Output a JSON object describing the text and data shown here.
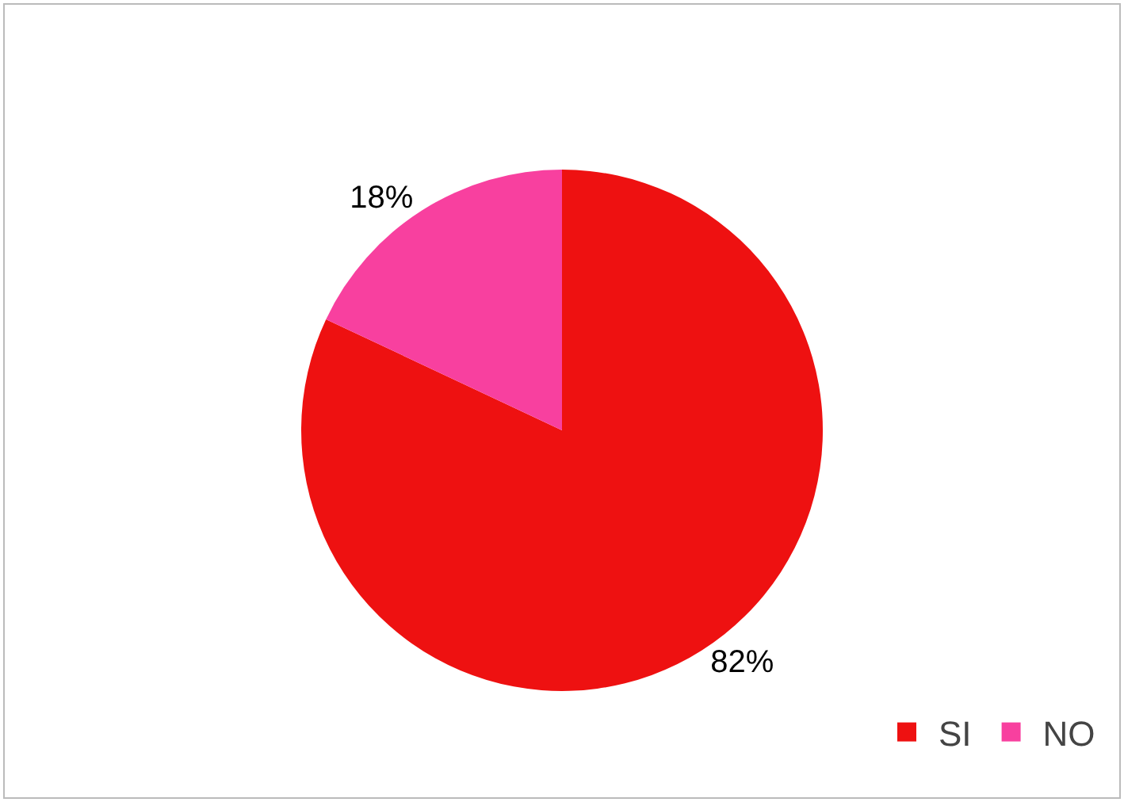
{
  "chart_data": {
    "type": "pie",
    "categories": [
      "SI",
      "NO"
    ],
    "values": [
      82,
      18
    ],
    "colors": [
      "#ee1111",
      "#f8409f"
    ],
    "value_labels": [
      "82%",
      "18%"
    ],
    "legend": "bottom right"
  }
}
